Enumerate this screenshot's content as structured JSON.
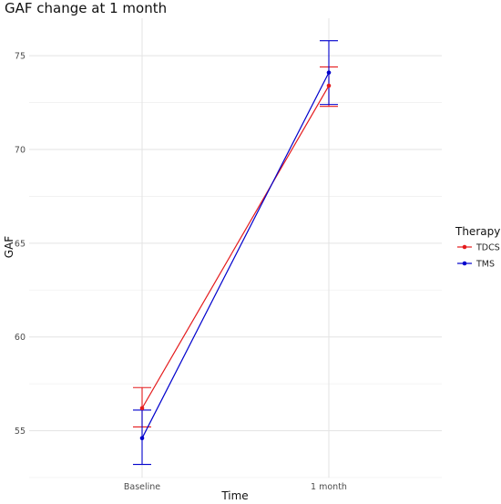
{
  "chart_data": {
    "type": "line",
    "title": "GAF change at 1 month",
    "xlabel": "Time",
    "ylabel": "GAF",
    "categories": [
      "Baseline",
      "1 month"
    ],
    "ylim": [
      52.5,
      77
    ],
    "yticks": [
      55,
      60,
      65,
      70,
      75
    ],
    "grid": true,
    "legend": {
      "title": "Therapy",
      "position": "right"
    },
    "series": [
      {
        "name": "TDCS",
        "color": "#e41a1c",
        "values": [
          56.2,
          73.4
        ],
        "error_low": [
          55.2,
          72.3
        ],
        "error_high": [
          57.3,
          74.4
        ]
      },
      {
        "name": "TMS",
        "color": "#0000cc",
        "values": [
          54.6,
          74.1
        ],
        "error_low": [
          53.2,
          72.4
        ],
        "error_high": [
          56.1,
          75.8
        ]
      }
    ]
  }
}
